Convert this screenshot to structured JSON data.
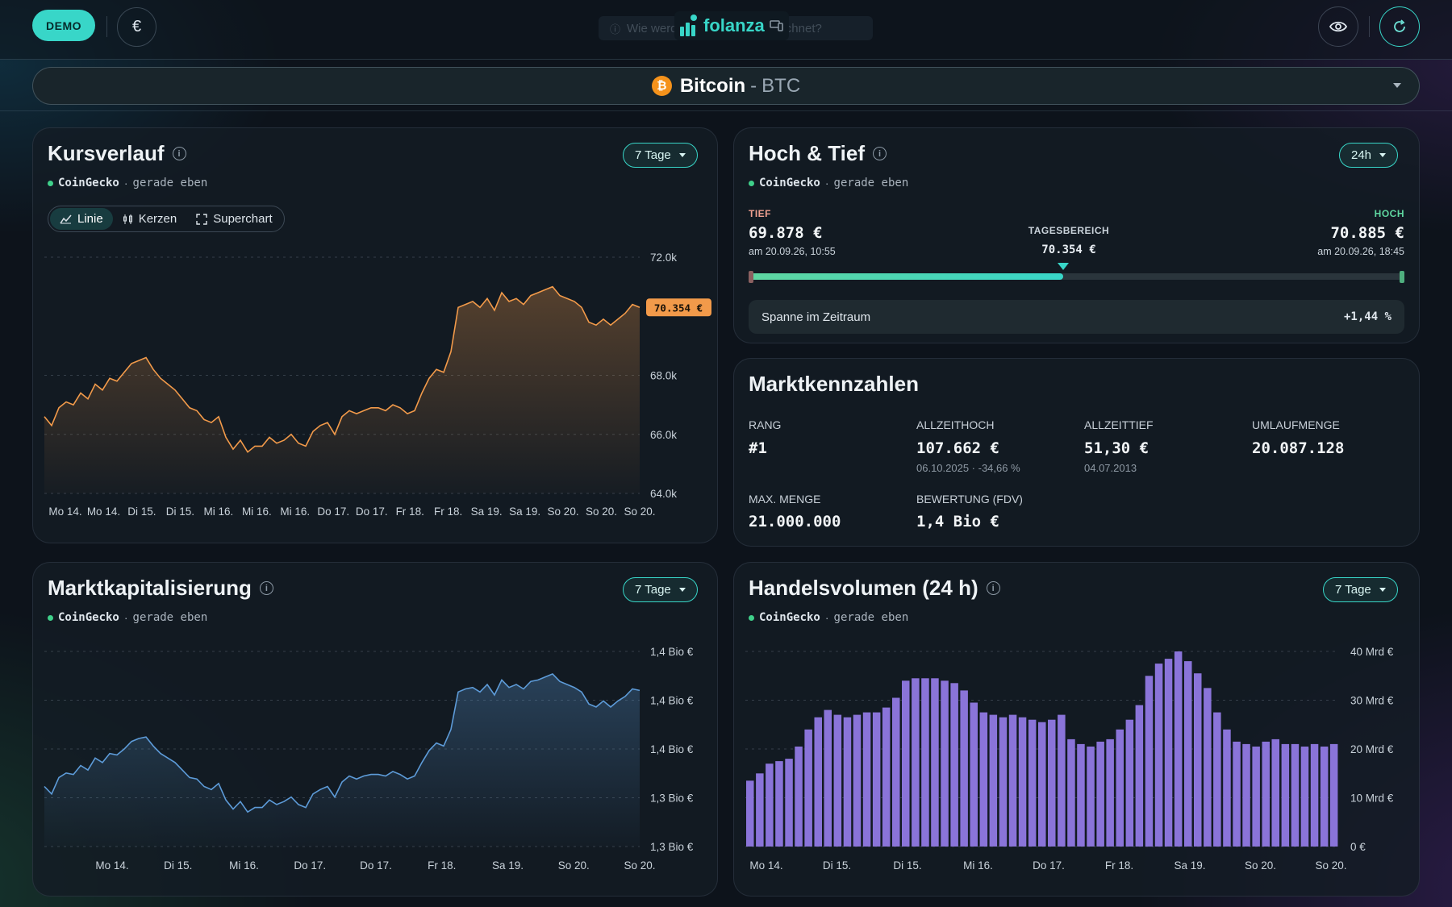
{
  "topbar": {
    "demo_label": "DEMO",
    "currency_symbol": "€",
    "ghost_text": "Wie werden Kennzahlen berechnet?",
    "logo_text": "folanza",
    "eye_icon": "eye-icon",
    "refresh_icon": "refresh-icon"
  },
  "asset": {
    "name": "Bitcoin",
    "separator": "-",
    "symbol": "BTC",
    "icon_letter": "₿"
  },
  "kursverlauf": {
    "title": "Kursverlauf",
    "period": "7 Tage",
    "source": "CoinGecko",
    "dot": "·",
    "updated": "gerade eben",
    "tabs": [
      "Linie",
      "Kerzen",
      "Superchart"
    ],
    "current_price_label": "70.354 €"
  },
  "hochtief": {
    "title": "Hoch & Tief",
    "period": "24h",
    "source": "CoinGecko",
    "updated": "gerade eben",
    "tief_label": "TIEF",
    "tief_value": "69.878 €",
    "tief_date": "am 20.09.26, 10:55",
    "range_label": "TAGESBEREICH",
    "range_value": "70.354 €",
    "hoch_label": "HOCH",
    "hoch_value": "70.885 €",
    "hoch_date": "am 20.09.26, 18:45",
    "position_fraction": 0.48,
    "spanne_label": "Spanne im Zeitraum",
    "spanne_value": "+1,44 %"
  },
  "kennzahlen": {
    "title": "Marktkennzahlen",
    "rang_label": "RANG",
    "rang_value": "#1",
    "ath_label": "ALLZEITHOCH",
    "ath_value": "107.662 €",
    "ath_sub": "06.10.2025 · -34,66 %",
    "atl_label": "ALLZEITTIEF",
    "atl_value": "51,30 €",
    "atl_sub": "04.07.2013",
    "umlauf_label": "UMLAUFMENGE",
    "umlauf_value": "20.087.128",
    "max_label": "MAX. MENGE",
    "max_value": "21.000.000",
    "fdv_label": "BEWERTUNG (FDV)",
    "fdv_value": "1,4 Bio €"
  },
  "marktkap": {
    "title": "Marktkapitalisierung",
    "period": "7 Tage",
    "source": "CoinGecko",
    "updated": "gerade eben"
  },
  "volumen": {
    "title": "Handelsvolumen (24 h)",
    "period": "7 Tage",
    "source": "CoinGecko",
    "updated": "gerade eben"
  },
  "colors": {
    "accent": "#38d6c8",
    "price_line": "#f29a4a",
    "mcap_line": "#5d9bd8",
    "volume_bar": "#8a74d9",
    "tief": "#f0a090",
    "hoch": "#5fd6a0"
  },
  "chart_data": [
    {
      "type": "area",
      "title": "Kursverlauf",
      "ylim": [
        64000,
        72000
      ],
      "yticks": [
        "72.0k",
        "68.0k",
        "66.0k",
        "64.0k"
      ],
      "ytick_values": [
        72000,
        68000,
        66000,
        64000
      ],
      "xticks": [
        "Mo 14.",
        "Mo 14.",
        "Di 15.",
        "Di 15.",
        "Mi 16.",
        "Mi 16.",
        "Mi 16.",
        "Do 17.",
        "Do 17.",
        "Fr 18.",
        "Fr 18.",
        "Sa 19.",
        "Sa 19.",
        "So 20.",
        "So 20.",
        "So 20."
      ],
      "values": [
        66600,
        66300,
        66900,
        67100,
        67000,
        67400,
        67200,
        67700,
        67500,
        67900,
        67800,
        68100,
        68400,
        68500,
        68600,
        68200,
        67900,
        67700,
        67500,
        67200,
        66900,
        66800,
        66500,
        66400,
        66600,
        65900,
        65500,
        65800,
        65400,
        65600,
        65600,
        65900,
        65700,
        65800,
        66000,
        65700,
        65600,
        66100,
        66300,
        66400,
        66000,
        66600,
        66800,
        66700,
        66800,
        66900,
        66900,
        66800,
        67000,
        66900,
        66700,
        66800,
        67400,
        67900,
        68200,
        68100,
        68800,
        70300,
        70400,
        70500,
        70300,
        70600,
        70200,
        70800,
        70500,
        70600,
        70400,
        70700,
        70800,
        70900,
        71000,
        70700,
        70600,
        70500,
        70300,
        69800,
        69700,
        69900,
        69700,
        69900,
        70100,
        70400,
        70300
      ]
    },
    {
      "type": "area",
      "title": "Marktkapitalisierung",
      "yticks": [
        "1,4 Bio €",
        "1,4 Bio €",
        "1,4 Bio €",
        "1,3 Bio €",
        "1,3 Bio €"
      ],
      "xticks": [
        "Mo 14.",
        "Di 15.",
        "Mi 16.",
        "Do 17.",
        "Do 17.",
        "Fr 18.",
        "Sa 19.",
        "So 20.",
        "So 20."
      ],
      "ylim": [
        1.29,
        1.42
      ],
      "values": [
        1.33,
        1.325,
        1.336,
        1.339,
        1.338,
        1.344,
        1.341,
        1.349,
        1.346,
        1.352,
        1.351,
        1.355,
        1.36,
        1.362,
        1.363,
        1.357,
        1.352,
        1.349,
        1.346,
        1.341,
        1.336,
        1.335,
        1.33,
        1.328,
        1.332,
        1.321,
        1.315,
        1.32,
        1.313,
        1.316,
        1.316,
        1.321,
        1.318,
        1.32,
        1.323,
        1.318,
        1.316,
        1.325,
        1.328,
        1.33,
        1.323,
        1.333,
        1.337,
        1.335,
        1.337,
        1.338,
        1.338,
        1.337,
        1.34,
        1.338,
        1.335,
        1.337,
        1.346,
        1.354,
        1.359,
        1.357,
        1.368,
        1.393,
        1.395,
        1.396,
        1.393,
        1.398,
        1.391,
        1.401,
        1.396,
        1.398,
        1.395,
        1.4,
        1.401,
        1.403,
        1.405,
        1.4,
        1.398,
        1.396,
        1.393,
        1.385,
        1.383,
        1.387,
        1.383,
        1.387,
        1.39,
        1.395,
        1.394
      ]
    },
    {
      "type": "bar",
      "title": "Handelsvolumen (24 h)",
      "ylim": [
        0,
        40
      ],
      "yticks": [
        "40 Mrd €",
        "30 Mrd €",
        "20 Mrd €",
        "10 Mrd €",
        "0 €"
      ],
      "ytick_values": [
        40,
        30,
        20,
        10,
        0
      ],
      "xticks": [
        "Mo 14.",
        "Di 15.",
        "Di 15.",
        "Mi 16.",
        "Do 17.",
        "Fr 18.",
        "Sa 19.",
        "So 20.",
        "So 20."
      ],
      "values": [
        13.5,
        15,
        17,
        17.5,
        18,
        20.5,
        24,
        26.5,
        28,
        27,
        26.5,
        27,
        27.5,
        27.5,
        28.5,
        30.5,
        34,
        34.5,
        34.5,
        34.5,
        34,
        33.5,
        32,
        29.5,
        27.5,
        27,
        26.5,
        27,
        26.5,
        26,
        25.5,
        26,
        27,
        22,
        21,
        20.5,
        21.5,
        22,
        24,
        26,
        29,
        35,
        37.5,
        38.5,
        40,
        38,
        35.5,
        32.5,
        27.5,
        24,
        21.5,
        21,
        20.5,
        21.5,
        22,
        21,
        21,
        20.5,
        21,
        20.5,
        21
      ]
    }
  ]
}
